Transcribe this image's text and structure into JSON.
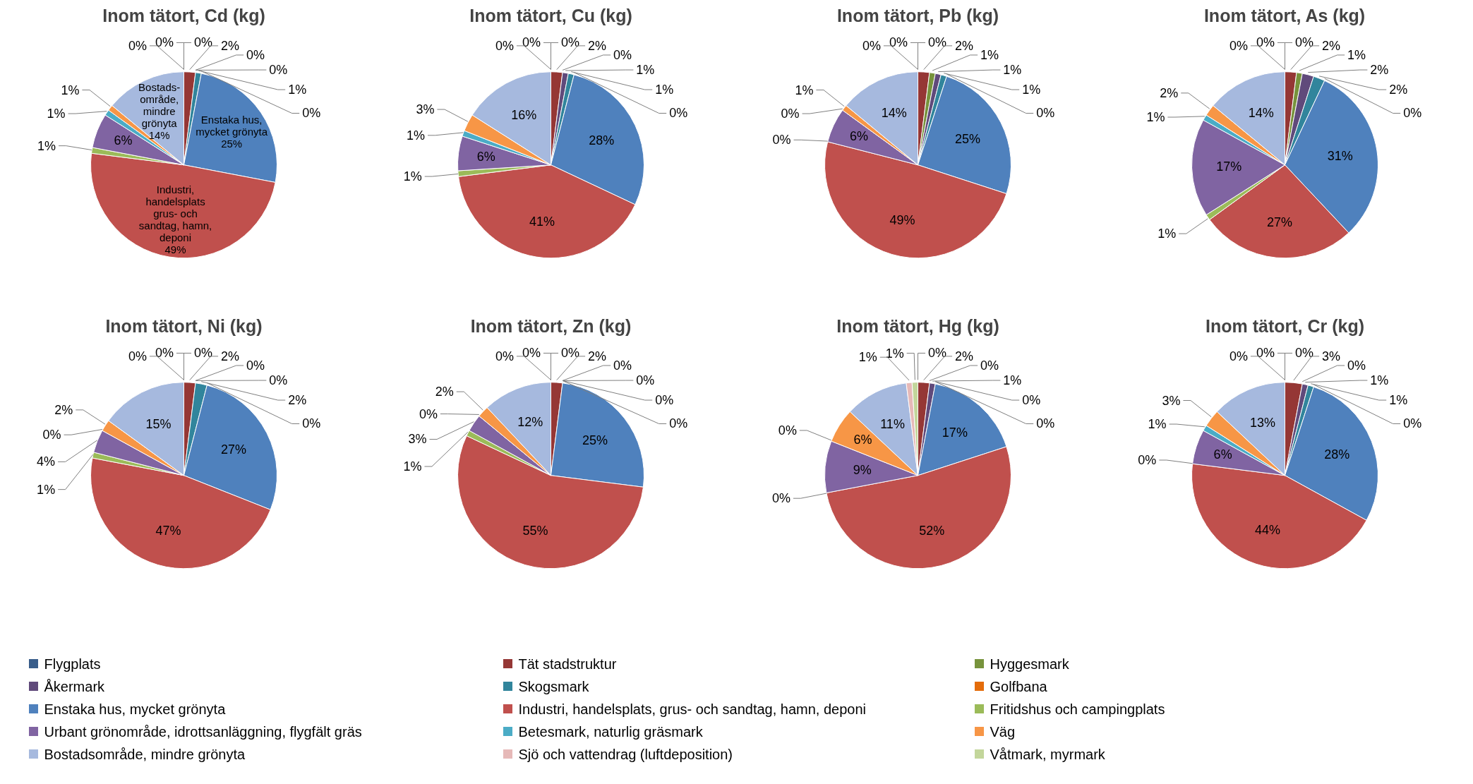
{
  "chart_data": [
    {
      "type": "pie",
      "title": "Inom tätort, Cd (kg)",
      "legend": "bottom",
      "categories": [
        "Flygplats",
        "Tät stadstruktur",
        "Hyggesmark",
        "Åkermark",
        "Skogsmark",
        "Golfbana",
        "Enstaka hus, mycket grönyta",
        "Industri, handelsplats, grus- och sandtag, hamn, deponi",
        "Fritidshus och campingplats",
        "Urbant grönområde, idrottsanläggning, flygfält gräs",
        "Betesmark, naturlig gräsmark",
        "Väg",
        "Bostadsområde, mindre grönyta",
        "Sjö och vattendrag (luftdeposition)",
        "Våtmark, myrmark"
      ],
      "colors": [
        "#385d8a",
        "#953735",
        "#77933c",
        "#604a7b",
        "#31859c",
        "#e46c0a",
        "#4f81bd",
        "#c0504d",
        "#9bbb59",
        "#8064a2",
        "#4bacc6",
        "#f79646",
        "#a6b9de",
        "#e6b9b8",
        "#c3d69b"
      ],
      "values": [
        0,
        2,
        0,
        0,
        1,
        0,
        25,
        49,
        1,
        6,
        1,
        1,
        14,
        0,
        0
      ],
      "value_labels": [
        "0%",
        "2%",
        "0%",
        "0%",
        "1%",
        "0%",
        "Enstaka hus,\nmycket grönyta\n25%",
        "Industri,\nhandelsplats\ngrus- och\nsandtag, hamn,\ndeponi\n49%",
        "1%",
        "6%",
        "1%",
        "1%",
        "Bostads-\nområde,\nmindre\ngrönyta\n14%",
        "0%",
        "0%"
      ]
    },
    {
      "type": "pie",
      "title": "Inom tätort, Cu (kg)",
      "colors": [
        "#385d8a",
        "#953735",
        "#77933c",
        "#604a7b",
        "#31859c",
        "#e46c0a",
        "#4f81bd",
        "#c0504d",
        "#9bbb59",
        "#8064a2",
        "#4bacc6",
        "#f79646",
        "#a6b9de",
        "#e6b9b8",
        "#c3d69b"
      ],
      "values": [
        0,
        2,
        0,
        1,
        1,
        0,
        28,
        41,
        1,
        6,
        1,
        3,
        16,
        0,
        0
      ],
      "value_labels": [
        "0%",
        "2%",
        "0%",
        "1%",
        "1%",
        "0%",
        "28%",
        "41%",
        "1%",
        "6%",
        "1%",
        "3%",
        "16%",
        "0%",
        "0%"
      ]
    },
    {
      "type": "pie",
      "title": "Inom tätort, Pb (kg)",
      "colors": [
        "#385d8a",
        "#953735",
        "#77933c",
        "#604a7b",
        "#31859c",
        "#e46c0a",
        "#4f81bd",
        "#c0504d",
        "#9bbb59",
        "#8064a2",
        "#4bacc6",
        "#f79646",
        "#a6b9de",
        "#e6b9b8",
        "#c3d69b"
      ],
      "values": [
        0,
        2,
        1,
        1,
        1,
        0,
        25,
        49,
        0,
        6,
        0,
        1,
        14,
        0,
        0
      ],
      "value_labels": [
        "0%",
        "2%",
        "1%",
        "1%",
        "1%",
        "0%",
        "25%",
        "49%",
        "0%",
        "6%",
        "0%",
        "1%",
        "14%",
        "0%",
        "0%"
      ]
    },
    {
      "type": "pie",
      "title": "Inom tätort, As (kg)",
      "colors": [
        "#385d8a",
        "#953735",
        "#77933c",
        "#604a7b",
        "#31859c",
        "#e46c0a",
        "#4f81bd",
        "#c0504d",
        "#9bbb59",
        "#8064a2",
        "#4bacc6",
        "#f79646",
        "#a6b9de",
        "#e6b9b8",
        "#c3d69b"
      ],
      "values": [
        0,
        2,
        1,
        2,
        2,
        0,
        31,
        27,
        1,
        17,
        1,
        2,
        14,
        0,
        0
      ],
      "value_labels": [
        "0%",
        "2%",
        "1%",
        "2%",
        "2%",
        "0%",
        "31%",
        "27%",
        "1%",
        "17%",
        "1%",
        "2%",
        "14%",
        "0%",
        "0%"
      ]
    },
    {
      "type": "pie",
      "title": "Inom tätort, Ni (kg)",
      "colors": [
        "#385d8a",
        "#953735",
        "#77933c",
        "#604a7b",
        "#31859c",
        "#e46c0a",
        "#4f81bd",
        "#c0504d",
        "#9bbb59",
        "#8064a2",
        "#4bacc6",
        "#f79646",
        "#a6b9de",
        "#e6b9b8",
        "#c3d69b"
      ],
      "values": [
        0,
        2,
        0,
        0,
        2,
        0,
        27,
        47,
        1,
        4,
        0,
        2,
        15,
        0,
        0
      ],
      "value_labels": [
        "0%",
        "2%",
        "0%",
        "0%",
        "2%",
        "0%",
        "27%",
        "47%",
        "1%",
        "4%",
        "0%",
        "2%",
        "15%",
        "0%",
        "0%"
      ]
    },
    {
      "type": "pie",
      "title": "Inom tätort, Zn (kg)",
      "colors": [
        "#385d8a",
        "#953735",
        "#77933c",
        "#604a7b",
        "#31859c",
        "#e46c0a",
        "#4f81bd",
        "#c0504d",
        "#9bbb59",
        "#8064a2",
        "#4bacc6",
        "#f79646",
        "#a6b9de",
        "#e6b9b8",
        "#c3d69b"
      ],
      "values": [
        0,
        2,
        0,
        0,
        0,
        0,
        25,
        55,
        1,
        3,
        0,
        2,
        12,
        0,
        0
      ],
      "value_labels": [
        "0%",
        "2%",
        "0%",
        "0%",
        "0%",
        "0%",
        "25%",
        "55%",
        "1%",
        "3%",
        "0%",
        "2%",
        "12%",
        "0%",
        "0%"
      ]
    },
    {
      "type": "pie",
      "title": "Inom tätort, Hg (kg)",
      "colors": [
        "#385d8a",
        "#953735",
        "#77933c",
        "#604a7b",
        "#31859c",
        "#e46c0a",
        "#4f81bd",
        "#c0504d",
        "#9bbb59",
        "#8064a2",
        "#4bacc6",
        "#f79646",
        "#a6b9de",
        "#e6b9b8",
        "#c3d69b"
      ],
      "values": [
        0,
        2,
        0,
        1,
        0,
        0,
        17,
        52,
        0,
        9,
        0,
        6,
        11,
        1,
        1
      ],
      "value_labels": [
        "0%",
        "2%",
        "0%",
        "1%",
        "0%",
        "0%",
        "17%",
        "52%",
        "0%",
        "9%",
        "0%",
        "6%",
        "11%",
        "1%",
        "1%"
      ]
    },
    {
      "type": "pie",
      "title": "Inom tätort, Cr (kg)",
      "colors": [
        "#385d8a",
        "#953735",
        "#77933c",
        "#604a7b",
        "#31859c",
        "#e46c0a",
        "#4f81bd",
        "#c0504d",
        "#9bbb59",
        "#8064a2",
        "#4bacc6",
        "#f79646",
        "#a6b9de",
        "#e6b9b8",
        "#c3d69b"
      ],
      "values": [
        0,
        3,
        0,
        1,
        1,
        0,
        28,
        44,
        0,
        6,
        1,
        3,
        13,
        0,
        0
      ],
      "value_labels": [
        "0%",
        "3%",
        "0%",
        "1%",
        "1%",
        "0%",
        "28%",
        "44%",
        "0%",
        "6%",
        "1%",
        "3%",
        "13%",
        "0%",
        "0%"
      ]
    }
  ]
}
